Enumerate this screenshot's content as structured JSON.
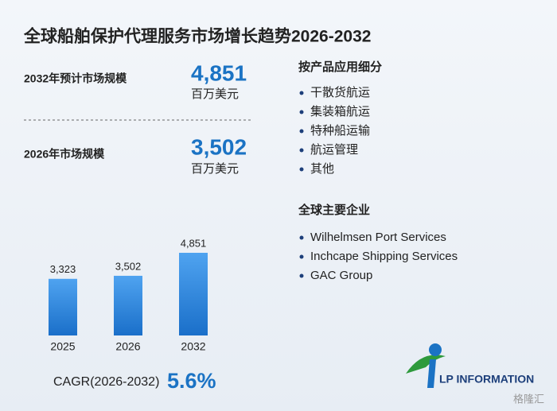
{
  "title": "全球船舶保护代理服务市场增长趋势2026-2032",
  "stats": [
    {
      "label": "2032年预计市场规模",
      "value": "4,851",
      "unit": "百万美元"
    },
    {
      "label": "2026年市场规模",
      "value": "3,502",
      "unit": "百万美元"
    }
  ],
  "segments": {
    "title": "按产品应用细分",
    "items": [
      "干散货航运",
      "集装箱航运",
      "特种船运输",
      "航运管理",
      "其他"
    ]
  },
  "companies": {
    "title": "全球主要企业",
    "items": [
      "Wilhelmsen Port Services",
      "Inchcape Shipping Services",
      "GAC Group"
    ]
  },
  "cagr": {
    "label": "CAGR(2026-2032)",
    "value": "5.6%"
  },
  "logo": "LP INFORMATION",
  "watermark": "格隆汇",
  "chart_data": {
    "type": "bar",
    "categories": [
      "2025",
      "2026",
      "2032"
    ],
    "values": [
      3323,
      3502,
      4851
    ],
    "value_labels": [
      "3,323",
      "3,502",
      "4,851"
    ],
    "color": "#1f78d1"
  }
}
